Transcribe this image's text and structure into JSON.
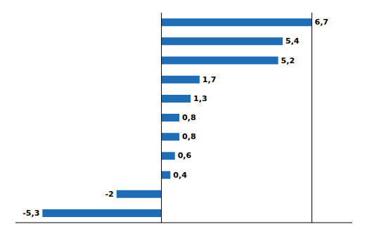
{
  "chart_data": {
    "type": "bar",
    "orientation": "horizontal",
    "categories": [
      null,
      null,
      null,
      null,
      null,
      null,
      null,
      null,
      null,
      null,
      null
    ],
    "values": [
      6.7,
      5.4,
      5.2,
      1.7,
      1.3,
      0.8,
      0.8,
      0.6,
      0.4,
      -2.0,
      -5.3
    ],
    "value_labels": [
      "6,7",
      "5,4",
      "5,2",
      "1,7",
      "1,3",
      "0,8",
      "0,8",
      "0,6",
      "0,4",
      "-2",
      "-5,3"
    ],
    "data_labels": true,
    "color": "#1F6EB5",
    "xlim": [
      -6.5,
      8.5
    ],
    "vlines": [
      0,
      6.7
    ],
    "tick_labels": false,
    "grid": false
  }
}
